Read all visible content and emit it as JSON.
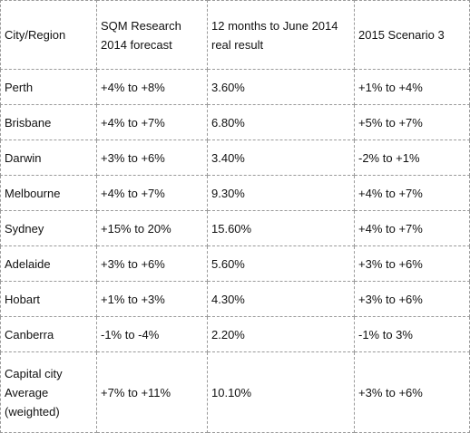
{
  "table": {
    "headers": [
      "City/Region",
      "SQM Research 2014 forecast",
      "12 months to June 2014 real result",
      "2015 Scenario 3"
    ],
    "rows": [
      [
        "Perth",
        "+4% to +8%",
        "3.60%",
        "+1% to +4%"
      ],
      [
        "Brisbane",
        "+4% to +7%",
        "6.80%",
        "+5% to +7%"
      ],
      [
        "Darwin",
        "+3% to +6%",
        "3.40%",
        "-2% to +1%"
      ],
      [
        "Melbourne",
        "+4% to +7%",
        "9.30%",
        "+4% to +7%"
      ],
      [
        "Sydney",
        "+15% to 20%",
        "15.60%",
        "+4% to +7%"
      ],
      [
        "Adelaide",
        "+3% to +6%",
        "5.60%",
        "+3% to +6%"
      ],
      [
        "Hobart",
        "+1% to +3%",
        "4.30%",
        "+3% to +6%"
      ],
      [
        "Canberra",
        "-1% to -4%",
        "2.20%",
        "-1% to 3%"
      ],
      [
        "Capital city Average (weighted)",
        "+7% to +11%",
        "10.10%",
        "+3% to +6%"
      ]
    ]
  }
}
